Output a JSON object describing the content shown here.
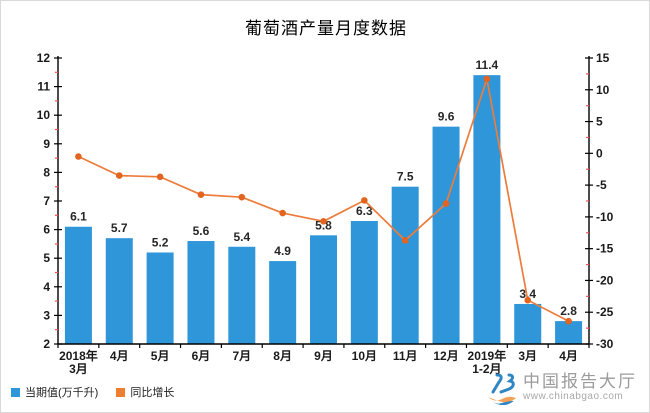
{
  "title": "葡萄酒产量月度数据",
  "legend": [
    {
      "label": "当期值(万千升)",
      "color": "#2e96d9"
    },
    {
      "label": "同比增长",
      "color": "#ed7d31"
    }
  ],
  "watermark": {
    "name": "中国报告大厅",
    "url": "www.chinabgao.com",
    "logo_blue": "#2f86c5",
    "logo_orange": "#f4a259"
  },
  "colors": {
    "bar": "#2e96d9",
    "line": "#ed7c3b",
    "marker": "#e2641f",
    "axis": "#000000",
    "minor_tick": "#ff4d4d",
    "data_label": "#262626",
    "tick_label": "#1a1a1a"
  },
  "chart_data": {
    "type": "bar+line",
    "title": "葡萄酒产量月度数据",
    "categories": [
      "2018年\n3月",
      "4月",
      "5月",
      "6月",
      "7月",
      "8月",
      "9月",
      "10月",
      "11月",
      "12月",
      "2019年\n1-2月",
      "3月",
      "4月"
    ],
    "series": [
      {
        "name": "当期值(万千升)",
        "type": "bar",
        "axis": "left",
        "values": [
          6.1,
          5.7,
          5.2,
          5.6,
          5.4,
          4.9,
          5.8,
          6.3,
          7.5,
          9.6,
          11.4,
          3.4,
          2.8
        ],
        "labels_shown": true
      },
      {
        "name": "同比增长",
        "type": "line",
        "axis": "right",
        "values": [
          -0.5,
          -3.5,
          -3.7,
          -6.5,
          -6.9,
          -9.4,
          -10.7,
          -7.4,
          -13.7,
          -7.9,
          11.7,
          -23.1,
          -26.4
        ],
        "labels_shown": false
      }
    ],
    "left_axis": {
      "min": 2,
      "max": 12,
      "major_step": 1,
      "minor_step": 0.5
    },
    "right_axis": {
      "min": -30,
      "max": 15,
      "major_step": 5,
      "minor_step": 2.5
    },
    "grid": false,
    "legend_position": "bottom-left"
  }
}
